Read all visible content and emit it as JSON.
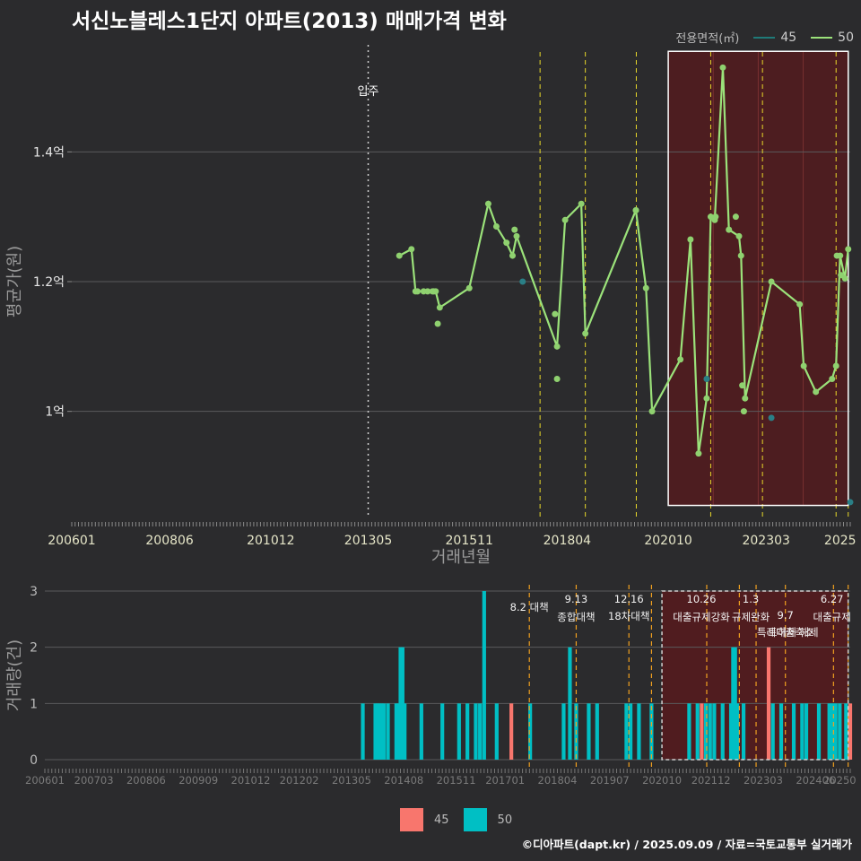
{
  "title": "서신노블레스1단지 아파트(2013) 매매가격 변화",
  "legend": {
    "title": "전용면적(㎡)",
    "items": [
      {
        "label": "45",
        "line_color": "#1f7a78",
        "bar_color": "#f8766d"
      },
      {
        "label": "50",
        "line_color": "#9be27a",
        "bar_color": "#00bfc4"
      }
    ]
  },
  "footer": "©디아파트(dapt.kr) / 2025.09.09 / 자료=국토교통부 실거래가",
  "chart_data": [
    {
      "type": "line",
      "xlabel": "거래년월",
      "ylabel": "평균가(원)",
      "x_ticks": [
        "200601",
        "200806",
        "201012",
        "201305",
        "201511",
        "201804",
        "202010",
        "202303",
        "2025"
      ],
      "x_tick_positions": [
        2006.0,
        2008.42,
        2010.92,
        2013.33,
        2015.83,
        2018.25,
        2020.75,
        2023.17,
        2025.0
      ],
      "xlim": [
        2006.0,
        2025.25
      ],
      "y_ticks": [
        1.0,
        1.2,
        1.4
      ],
      "y_tick_labels": [
        "1억",
        "1.2억",
        "1.4억"
      ],
      "ylim": [
        0.835,
        1.565
      ],
      "move_in": {
        "x": 2013.33,
        "label": "입주"
      },
      "policy_lines": [
        2017.58,
        2018.7,
        2019.96,
        2021.8,
        2023.08,
        2024.9,
        2025.2
      ],
      "highlight_range": [
        2020.75,
        2025.2
      ],
      "highlight_y": [
        0.855,
        1.555
      ],
      "series": [
        {
          "name": "50",
          "x": [
            2014.1,
            2014.4,
            2014.5,
            2014.7,
            2014.8,
            2014.92,
            2015.0,
            2015.1,
            2015.83,
            2016.3,
            2016.5,
            2016.75,
            2016.9,
            2017.0,
            2018.0,
            2018.2,
            2018.6,
            2018.7,
            2019.95,
            2020.2,
            2020.35,
            2021.05,
            2021.3,
            2021.5,
            2021.7,
            2021.8,
            2021.9,
            2022.1,
            2022.25,
            2022.5,
            2022.55,
            2022.65,
            2023.3,
            2024.0,
            2024.1,
            2024.4,
            2024.8,
            2024.9,
            2025.0,
            2025.12,
            2025.2
          ],
          "y": [
            1.24,
            1.25,
            1.185,
            1.185,
            1.185,
            1.185,
            1.185,
            1.16,
            1.19,
            1.32,
            1.285,
            1.26,
            1.24,
            1.27,
            1.1,
            1.295,
            1.32,
            1.12,
            1.31,
            1.19,
            1.0,
            1.08,
            1.265,
            0.935,
            1.02,
            1.3,
            1.295,
            1.53,
            1.28,
            1.27,
            1.24,
            1.02,
            1.2,
            1.165,
            1.07,
            1.03,
            1.05,
            1.07,
            1.24,
            1.205,
            1.25
          ]
        },
        {
          "name": "50-points",
          "x": [
            2014.55,
            2014.95,
            2015.05,
            2016.95,
            2017.95,
            2018.0,
            2019.95,
            2021.92,
            2022.42,
            2022.58,
            2022.62,
            2024.92,
            2025.02
          ],
          "y": [
            1.185,
            1.185,
            1.135,
            1.28,
            1.15,
            1.05,
            1.31,
            1.3,
            1.3,
            1.04,
            1.0,
            1.24,
            1.21
          ]
        },
        {
          "name": "45",
          "x": [
            2017.15,
            2021.7,
            2023.3,
            2025.25
          ],
          "y": [
            1.2,
            1.05,
            0.99,
            0.86
          ]
        }
      ]
    },
    {
      "type": "bar",
      "xlabel": "",
      "ylabel": "거래량(건)",
      "x_ticks": [
        "200601",
        "200703",
        "200806",
        "200909",
        "201012",
        "201202",
        "201305",
        "201408",
        "201511",
        "201701",
        "201804",
        "201907",
        "202010",
        "202112",
        "202303",
        "202406",
        "20250"
      ],
      "y_ticks": [
        0,
        1,
        2,
        3
      ],
      "ylim": [
        0,
        3
      ],
      "highlight_range": [
        2020.75,
        2025.2
      ],
      "policies": [
        {
          "x": 2017.58,
          "date": "",
          "label": "8.2 대책"
        },
        {
          "x": 2018.7,
          "date": "9.13",
          "label": "종합대책"
        },
        {
          "x": 2019.96,
          "date": "12.16",
          "label": "18차대책"
        },
        {
          "x": 2020.5,
          "date": "",
          "label": ""
        },
        {
          "x": 2021.82,
          "date": "10.26",
          "label": "대출규제강화"
        },
        {
          "x": 2022.6,
          "date": "",
          "label": ""
        },
        {
          "x": 2023.0,
          "date": "1.3",
          "label": "규제완화"
        },
        {
          "x": 2023.7,
          "date": "9.7",
          "label": "특례대출축소"
        },
        {
          "x": 2024.85,
          "date": "",
          "label": "토허제 해제"
        },
        {
          "x": 2025.2,
          "date": "6.27",
          "label": "대출규제"
        }
      ],
      "series": [
        {
          "name": "45",
          "x": [
            2017.15,
            2021.7,
            2023.3,
            2025.25
          ],
          "y": [
            1,
            1,
            2,
            1
          ]
        },
        {
          "name": "50",
          "x": [
            2013.6,
            2013.9,
            2013.95,
            2014.0,
            2014.05,
            2014.1,
            2014.2,
            2014.4,
            2014.45,
            2014.5,
            2014.55,
            2014.6,
            2015.0,
            2015.5,
            2015.9,
            2016.1,
            2016.3,
            2016.4,
            2016.5,
            2016.8,
            2017.6,
            2018.4,
            2018.55,
            2018.7,
            2019.0,
            2019.2,
            2019.9,
            2020.0,
            2020.2,
            2020.5,
            2021.4,
            2021.6,
            2021.8,
            2021.9,
            2022.0,
            2022.2,
            2022.4,
            2022.45,
            2022.5,
            2022.55,
            2022.7,
            2023.4,
            2023.6,
            2023.9,
            2024.1,
            2024.2,
            2024.5,
            2024.75,
            2024.8,
            2024.85,
            2024.9,
            2025.0,
            2025.15
          ],
          "y": [
            1,
            1,
            1,
            1,
            1,
            1,
            1,
            1,
            1,
            2,
            2,
            1,
            1,
            1,
            1,
            1,
            1,
            1,
            3,
            1,
            1,
            1,
            2,
            1,
            1,
            1,
            1,
            1,
            1,
            1,
            1,
            1,
            1,
            1,
            1,
            1,
            1,
            2,
            2,
            1,
            1,
            1,
            1,
            1,
            1,
            1,
            1,
            1,
            1,
            1,
            1,
            1,
            1
          ]
        }
      ]
    }
  ]
}
